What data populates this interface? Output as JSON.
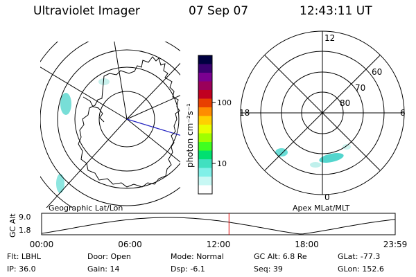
{
  "header": {
    "instrument": "Ultraviolet Imager",
    "date": "07 Sep 07",
    "time": "12:43:11 UT"
  },
  "left_panel": {
    "caption": "Geographic Lat/Lon"
  },
  "right_panel": {
    "caption": "Apex MLat/MLT",
    "mlt_labels": [
      "12",
      "18",
      "6",
      "0"
    ],
    "lat_labels": [
      "60",
      "70",
      "80"
    ]
  },
  "colorbar": {
    "label": "photon cm⁻²s⁻¹",
    "ticks": [
      "100",
      "10"
    ],
    "colors": [
      "#000040",
      "#3a0070",
      "#7a0090",
      "#9a005a",
      "#c00020",
      "#e84000",
      "#ff8c00",
      "#ffd000",
      "#e8ff00",
      "#a0ff00",
      "#40ff20",
      "#00e070",
      "#40e0c0",
      "#80f0e8",
      "#c8f8f4",
      "#ffffff"
    ]
  },
  "timeline": {
    "y_label": "GC Alt",
    "y_ticks": [
      "9.0",
      "1.8"
    ],
    "x_ticks": [
      "00:00",
      "06:00",
      "12:00",
      "18:00",
      "23:59"
    ],
    "marker_hour": 12.72,
    "marker_color": "#e00000"
  },
  "status": {
    "flt": "Flt: LBHL",
    "door": "Door: Open",
    "mode": "Mode: Normal",
    "gcalt": "GC Alt: 6.8 Re",
    "glat": "GLat: -77.3",
    "ip": "IP: 36.0",
    "gain": "Gain: 14",
    "dsp": "Dsp:    -6.1",
    "seq": "Seq: 39",
    "glon": "GLon: 152.6"
  }
}
